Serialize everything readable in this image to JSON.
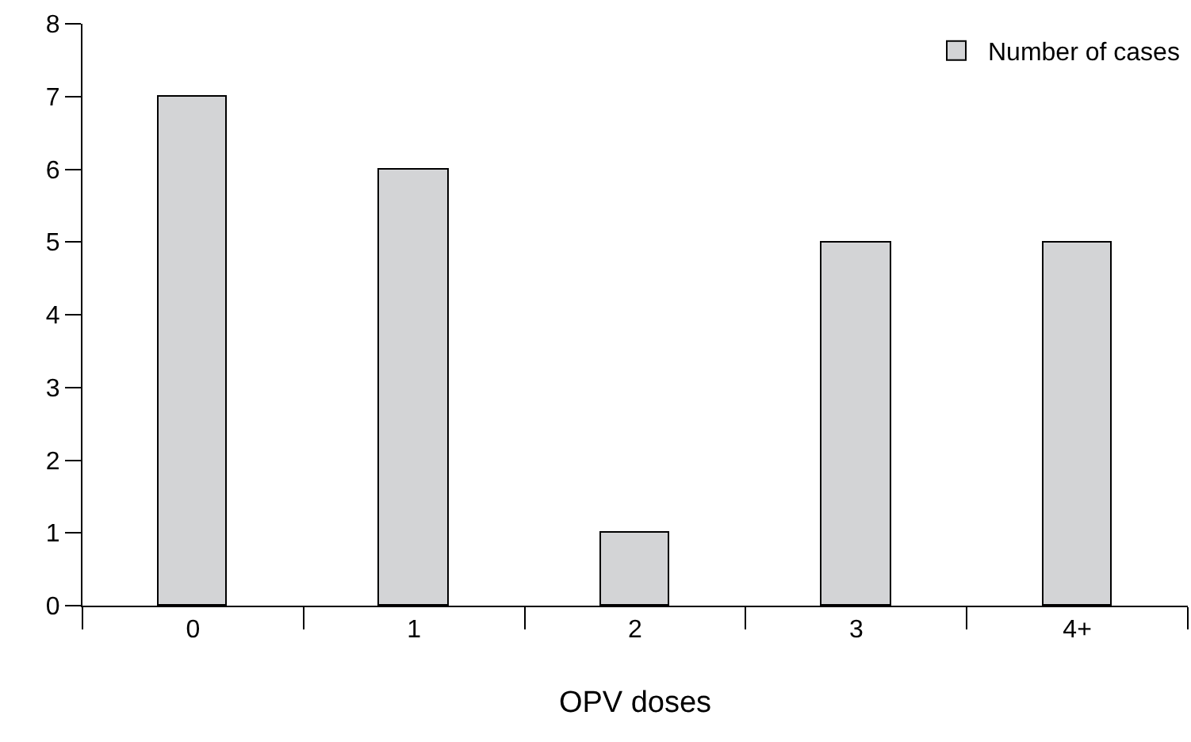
{
  "chart_data": {
    "type": "bar",
    "xlabel": "OPV doses",
    "categories": [
      "0",
      "1",
      "2",
      "3",
      "4+"
    ],
    "series": [
      {
        "name": "Number of cases",
        "color": "#d3d4d6",
        "values": [
          7,
          6,
          1,
          5,
          5
        ]
      }
    ],
    "ylim": [
      0,
      8
    ],
    "yticks": [
      0,
      1,
      2,
      3,
      4,
      5,
      6,
      7,
      8
    ],
    "grid": false,
    "legend": "top right"
  }
}
